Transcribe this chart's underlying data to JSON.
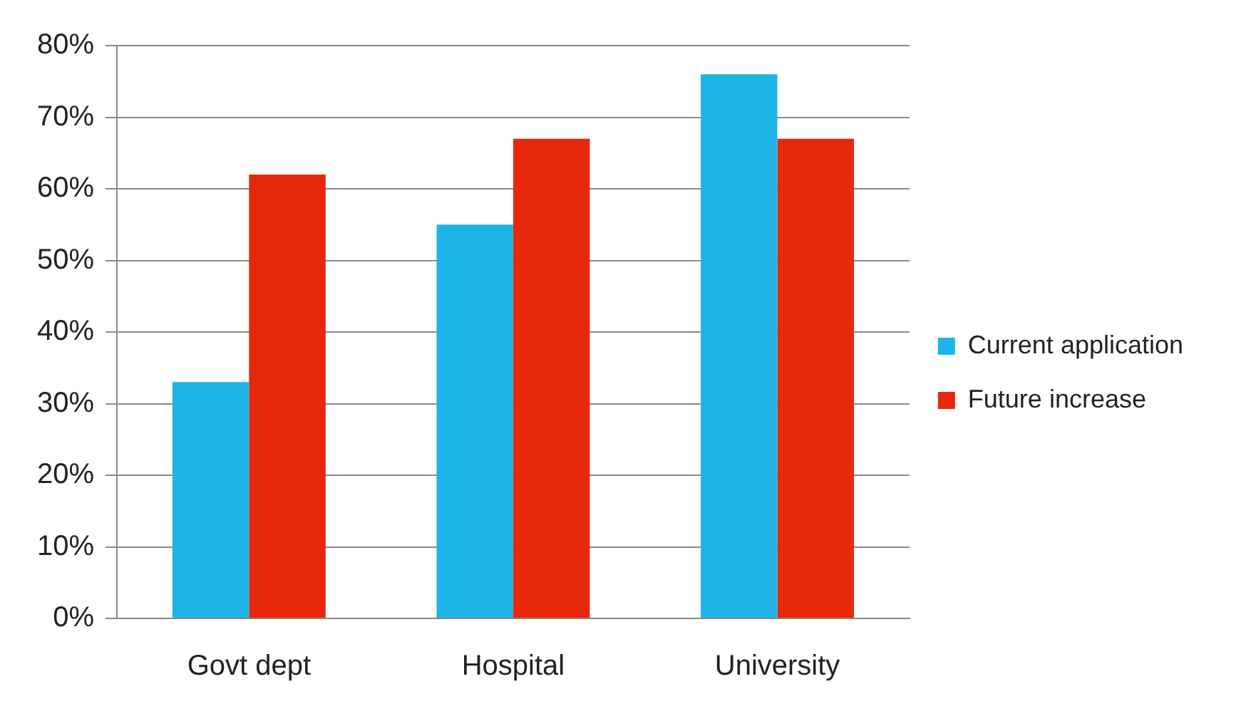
{
  "chart_data": {
    "type": "bar",
    "categories": [
      "Govt dept",
      "Hospital",
      "University"
    ],
    "series": [
      {
        "name": "Current application",
        "color": "#1fb4e6",
        "values": [
          33,
          55,
          76
        ]
      },
      {
        "name": "Future increase",
        "color": "#e8280c",
        "values": [
          62,
          67,
          67
        ]
      }
    ],
    "ylim": [
      0,
      80
    ],
    "yticks": [
      {
        "value": 0,
        "label": "0%"
      },
      {
        "value": 10,
        "label": "10%"
      },
      {
        "value": 20,
        "label": "20%"
      },
      {
        "value": 30,
        "label": "30%"
      },
      {
        "value": 40,
        "label": "40%"
      },
      {
        "value": 50,
        "label": "50%"
      },
      {
        "value": 60,
        "label": "60%"
      },
      {
        "value": 70,
        "label": "70%"
      },
      {
        "value": 80,
        "label": "80%"
      }
    ],
    "grid": "y",
    "legend": "right"
  }
}
